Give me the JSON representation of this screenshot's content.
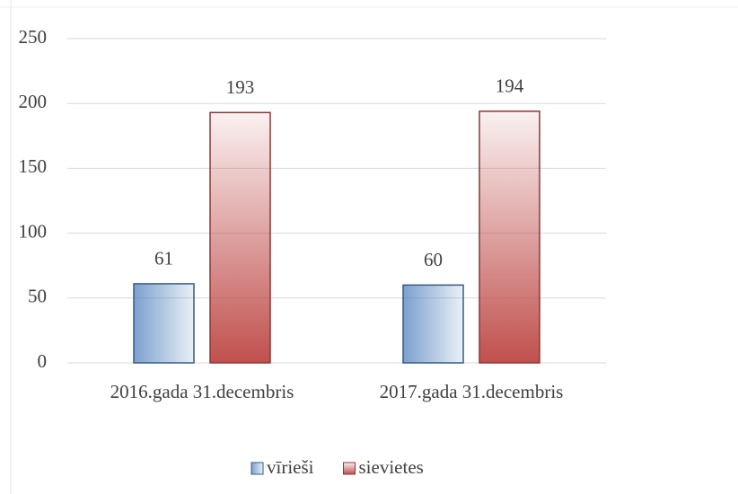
{
  "chart_data": {
    "type": "bar",
    "categories": [
      "2016.gada 31.decembris",
      "2017.gada 31.decembris"
    ],
    "series": [
      {
        "name": "vīrieši",
        "color": "#4f81bd",
        "values": [
          61,
          60
        ]
      },
      {
        "name": "sievietes",
        "color": "#c0504d",
        "values": [
          193,
          194
        ]
      }
    ],
    "ylim": [
      0,
      250
    ],
    "yticks": [
      0,
      50,
      100,
      150,
      200,
      250
    ],
    "grid": true,
    "legend": "bottom"
  }
}
